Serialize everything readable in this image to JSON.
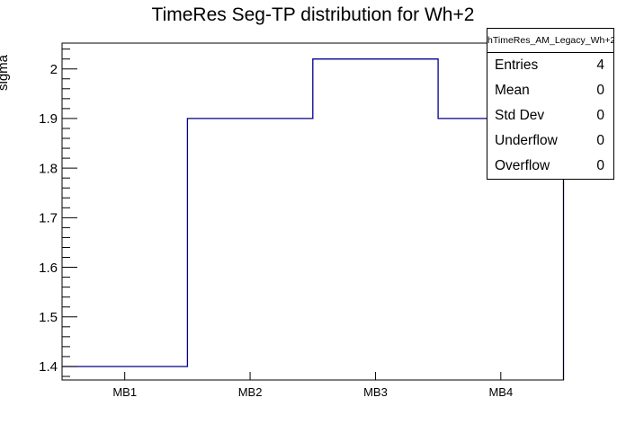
{
  "title": "TimeRes Seg-TP distribution for Wh+2",
  "colors": {
    "histogram_line": "#00008b",
    "axis": "#000000",
    "background": "#ffffff",
    "stats_border": "#000000"
  },
  "stats_box": {
    "header": "hTimeRes_AM_Legacy_Wh+2",
    "rows": [
      {
        "label": "Entries",
        "value": "4"
      },
      {
        "label": "Mean",
        "value": "0"
      },
      {
        "label": "Std Dev",
        "value": "0"
      },
      {
        "label": "Underflow",
        "value": "0"
      },
      {
        "label": "Overflow",
        "value": "0"
      }
    ]
  },
  "chart_data": {
    "type": "bar",
    "subtype": "root-step-histogram",
    "title": "TimeRes Seg-TP distribution for Wh+2",
    "xlabel": "",
    "ylabel": "sigma",
    "categories": [
      "MB1",
      "MB2",
      "MB3",
      "MB4"
    ],
    "values": [
      1.4,
      1.9,
      2.02,
      1.9
    ],
    "ylim": [
      1.3728,
      2.052
    ],
    "y_major_ticks": [
      1.4,
      1.5,
      1.6,
      1.7,
      1.8,
      1.9,
      2.0
    ],
    "y_tick_labels": [
      "1.4",
      "1.5",
      "1.6",
      "1.7",
      "1.8",
      "1.9",
      "2"
    ],
    "y_minor_step": 0.02,
    "grid": false,
    "legend": "none"
  }
}
